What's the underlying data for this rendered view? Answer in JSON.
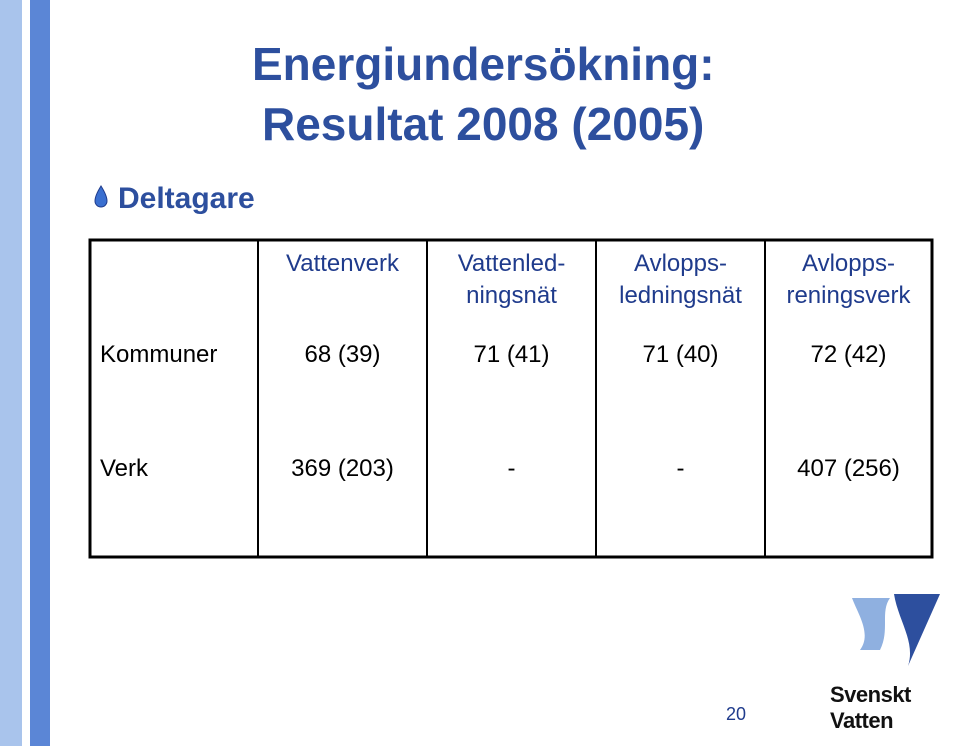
{
  "header": {
    "title": [
      "Energiundersökning:",
      "Resultat 2008 (2005)"
    ]
  },
  "bullet": "Deltagare",
  "table": {
    "columns": [
      [
        "Vattenverk"
      ],
      [
        "Vattenled-",
        "ningsnät"
      ],
      [
        "Avlopps-",
        "ledningsnät"
      ],
      [
        "Avlopps-",
        "reningsverk"
      ]
    ],
    "rows": [
      [
        "Kommuner",
        "68 (39)",
        "71 (41)",
        "71 (40)",
        "72 (42)"
      ],
      [
        "Verk",
        "369 (203)",
        "-",
        "-",
        "407 (256)"
      ]
    ]
  },
  "footer": {
    "page_number": "20",
    "logo": "Svenskt Vatten"
  }
}
